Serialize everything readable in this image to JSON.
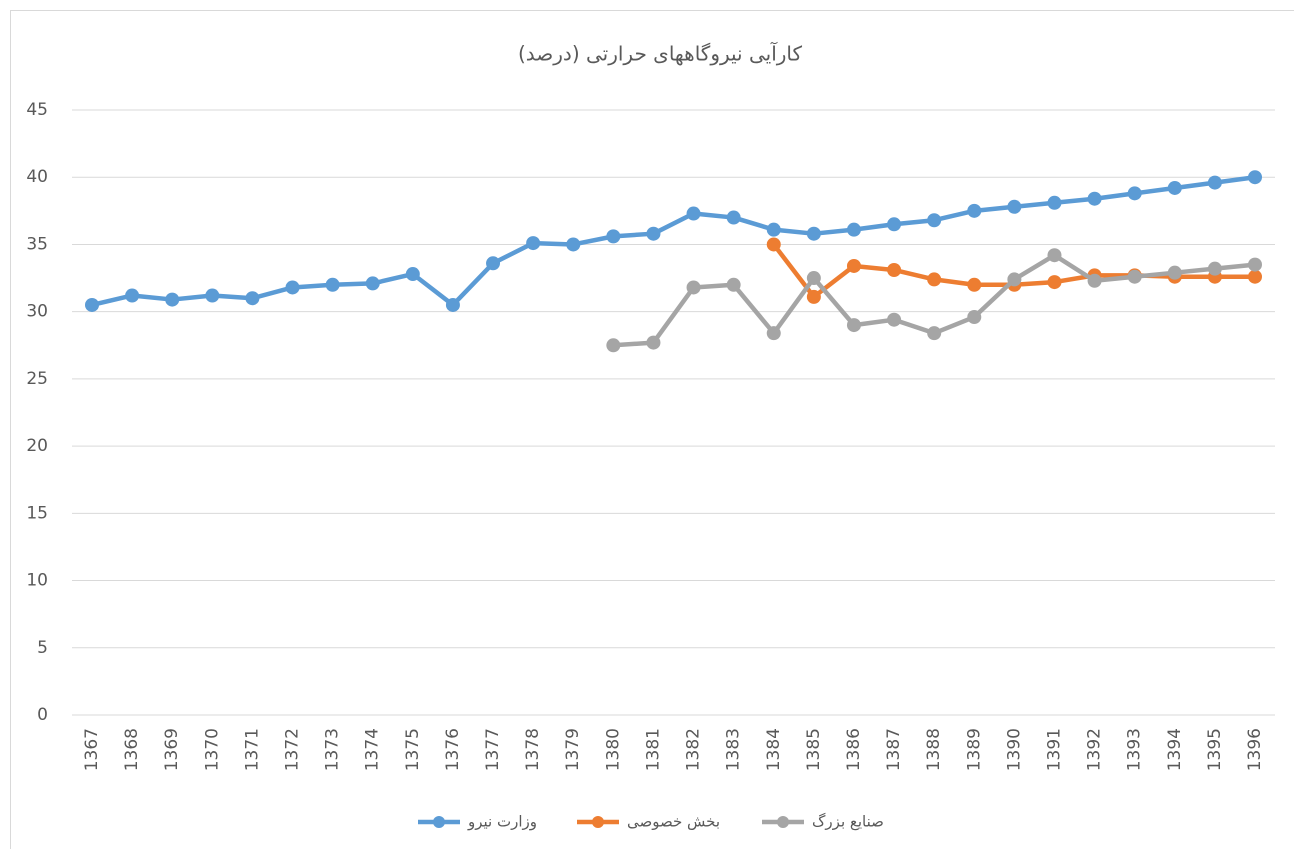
{
  "chart_data": {
    "type": "line",
    "title": "کارآیی نیروگاههای حرارتی (درصد)",
    "categories": [
      "1367",
      "1368",
      "1369",
      "1370",
      "1371",
      "1372",
      "1373",
      "1374",
      "1375",
      "1376",
      "1377",
      "1378",
      "1379",
      "1380",
      "1381",
      "1382",
      "1383",
      "1384",
      "1385",
      "1386",
      "1387",
      "1388",
      "1389",
      "1390",
      "1391",
      "1392",
      "1393",
      "1394",
      "1395",
      "1396"
    ],
    "series": [
      {
        "name": "وزارت نیرو",
        "color": "#5b9bd5",
        "values": [
          30.5,
          31.2,
          30.9,
          31.2,
          31.0,
          31.8,
          32.0,
          32.1,
          32.8,
          30.5,
          33.6,
          35.1,
          35.0,
          35.6,
          35.8,
          37.3,
          37.0,
          36.1,
          35.8,
          36.1,
          36.5,
          36.8,
          37.5,
          37.8,
          38.1,
          38.4,
          38.8,
          39.2,
          39.6,
          40.0
        ]
      },
      {
        "name": "بخش خصوصی",
        "color": "#ed7d31",
        "values": [
          null,
          null,
          null,
          null,
          null,
          null,
          null,
          null,
          null,
          null,
          null,
          null,
          null,
          null,
          null,
          null,
          null,
          35.0,
          31.1,
          33.4,
          33.1,
          32.4,
          32.0,
          32.0,
          32.2,
          32.7,
          32.7,
          32.6,
          32.6,
          32.6
        ]
      },
      {
        "name": "صنایع بزرگ",
        "color": "#a5a5a5",
        "values": [
          null,
          null,
          null,
          null,
          null,
          null,
          null,
          null,
          null,
          null,
          null,
          null,
          null,
          27.5,
          27.7,
          31.8,
          32.0,
          28.4,
          32.5,
          29.0,
          29.4,
          28.4,
          29.6,
          32.4,
          34.2,
          32.3,
          32.6,
          32.9,
          33.2,
          33.5
        ]
      }
    ],
    "ylim": [
      0,
      45
    ],
    "yticks": [
      0,
      5,
      10,
      15,
      20,
      25,
      30,
      35,
      40,
      45
    ],
    "grid": true,
    "legend": "bottom"
  }
}
